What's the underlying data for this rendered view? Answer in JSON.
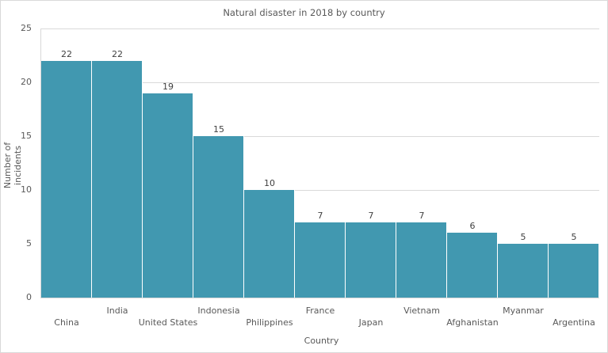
{
  "chart_data": {
    "type": "bar",
    "title": "Natural disaster in 2018 by country",
    "xlabel": "Country",
    "ylabel": "Number of incidents",
    "ylim": [
      0,
      25
    ],
    "yticks": [
      "0",
      "5",
      "10",
      "15",
      "20",
      "25"
    ],
    "grid": true,
    "legend": null,
    "categories": [
      "China",
      "India",
      "United States",
      "Indonesia",
      "Philippines",
      "France",
      "Japan",
      "Vietnam",
      "Afghanistan",
      "Myanmar",
      "Argentina"
    ],
    "values": [
      22,
      22,
      19,
      15,
      10,
      7,
      7,
      7,
      6,
      5,
      5
    ],
    "value_labels": [
      "22",
      "22",
      "19",
      "15",
      "10",
      "7",
      "7",
      "7",
      "6",
      "5",
      "5"
    ],
    "bar_color": "#4198b0"
  }
}
